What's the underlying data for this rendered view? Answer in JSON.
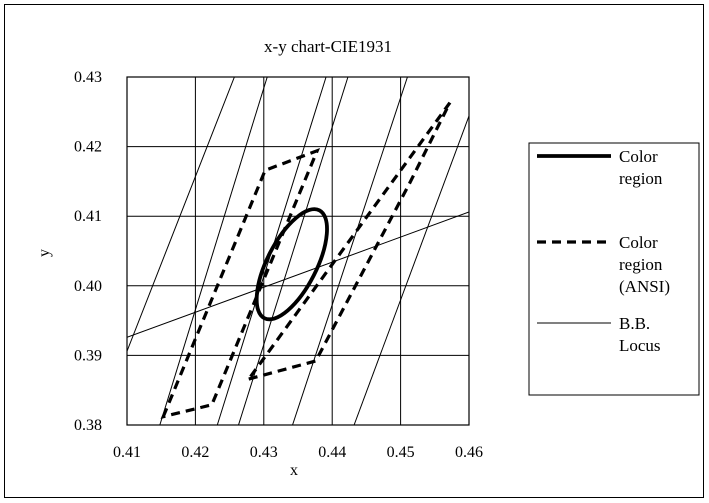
{
  "chart_data": {
    "type": "line",
    "title": "x-y chart-CIE1931",
    "xlabel": "x",
    "ylabel": "y",
    "xlim": [
      0.41,
      0.46
    ],
    "ylim": [
      0.38,
      0.43
    ],
    "x_ticks": [
      "0.41",
      "0.42",
      "0.43",
      "0.44",
      "0.45",
      "0.46"
    ],
    "y_ticks": [
      "0.38",
      "0.39",
      "0.40",
      "0.41",
      "0.42",
      "0.43"
    ],
    "grid": true,
    "legend": "right",
    "series": [
      {
        "name": "Color region",
        "style": "solid-thick",
        "color": "#000000",
        "ellipse": {
          "cx": 0.4341,
          "cy": 0.4031,
          "rx": 0.0036,
          "ry": 0.0087,
          "rotation_deg": 27
        }
      },
      {
        "name": "Color region (ANSI)",
        "style": "dashed-thick",
        "color": "#000000",
        "quadrangles": [
          [
            [
              0.4153,
              0.3812
            ],
            [
              0.4302,
              0.4166
            ],
            [
              0.4378,
              0.4194
            ],
            [
              0.4224,
              0.3829
            ]
          ],
          [
            [
              0.4278,
              0.3866
            ],
            [
              0.4376,
              0.3892
            ],
            [
              0.4513,
              0.4147
            ],
            [
              0.4572,
              0.4263
            ]
          ]
        ]
      },
      {
        "name": "B.B. Locus",
        "style": "solid-thin",
        "color": "#000000",
        "points": [
          [
            0.41,
            0.3926
          ],
          [
            0.46,
            0.4106
          ]
        ]
      }
    ],
    "isotemperature_lines": [
      [
        [
          0.41,
          0.3906
        ],
        [
          0.4257,
          0.43
        ]
      ],
      [
        [
          0.4148,
          0.38
        ],
        [
          0.4305,
          0.43
        ]
      ],
      [
        [
          0.4232,
          0.38
        ],
        [
          0.4391,
          0.43
        ]
      ],
      [
        [
          0.4263,
          0.38
        ],
        [
          0.4423,
          0.43
        ]
      ],
      [
        [
          0.4342,
          0.38
        ],
        [
          0.451,
          0.43
        ]
      ],
      [
        [
          0.4432,
          0.38
        ],
        [
          0.46,
          0.4244
        ]
      ]
    ]
  }
}
